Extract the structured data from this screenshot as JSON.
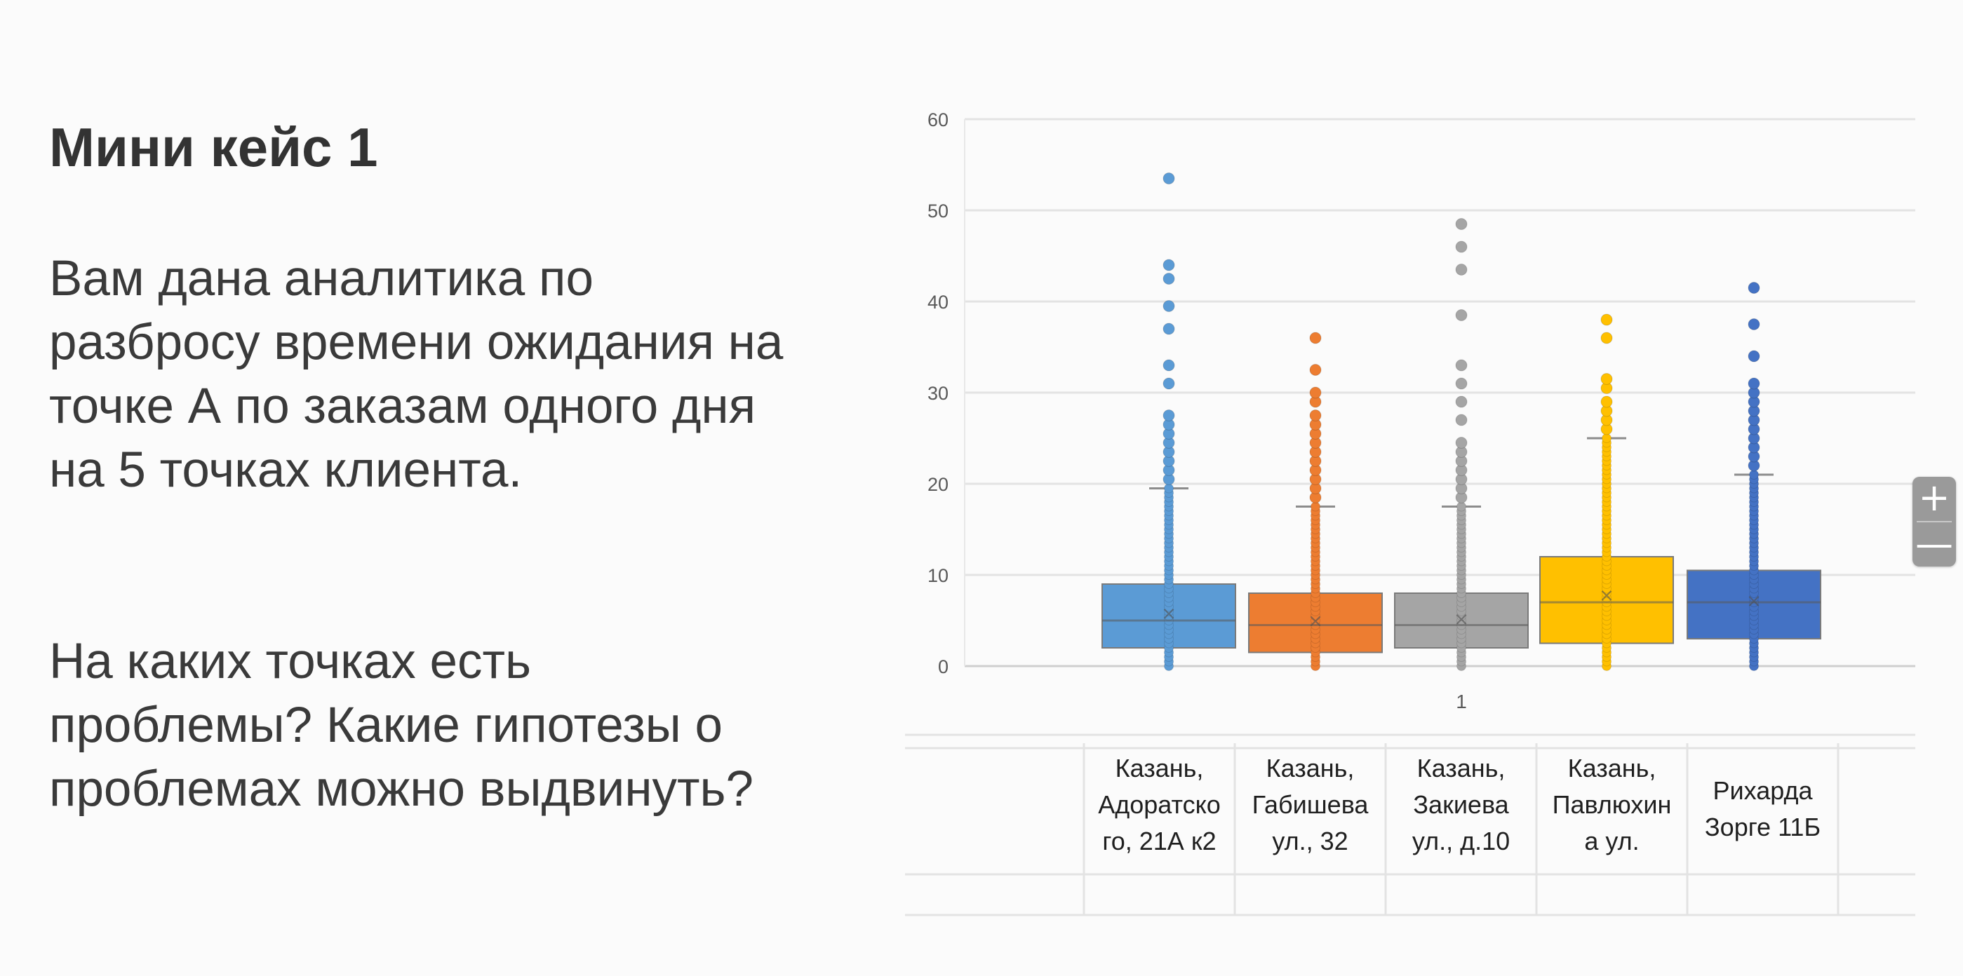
{
  "slide": {
    "title": "Мини кейс 1",
    "paragraph1": "Вам дана аналитика по разбросу времени ожидания на точке А по заказам одного дня на 5 точках клиента.",
    "paragraph2": "На каких точках есть проблемы? Какие гипотезы о проблемах можно выдвинуть?"
  },
  "zoom": {
    "in_label": "+",
    "out_label": "—"
  },
  "chart_data": {
    "type": "box",
    "title": "",
    "xlabel": "",
    "ylabel": "",
    "ylim": [
      0,
      60
    ],
    "yticks": [
      0,
      10,
      20,
      30,
      40,
      50,
      60
    ],
    "grid": true,
    "x_category_label": "1",
    "legend_table_labels": [
      "Казань, Адоратско го, 21А к2",
      "Казань, Габишева ул., 32",
      "Казань, Закиева ул., д.10",
      "Казань, Павлюхин а ул.",
      "Рихарда Зорге 11Б"
    ],
    "series": [
      {
        "name": "Казань, Адоратско го, 21А к2",
        "color": "#5b9bd5",
        "min": 0,
        "q1": 2,
        "median": 5,
        "mean": 5.8,
        "q3": 9,
        "max": 19.5,
        "outliers": [
          20.5,
          21.5,
          22.5,
          23.5,
          24.5,
          25.5,
          26.5,
          27.5,
          31,
          33,
          37,
          39.5,
          42.5,
          44,
          53.5
        ]
      },
      {
        "name": "Казань, Габишева ул., 32",
        "color": "#ed7d31",
        "min": 0,
        "q1": 1.5,
        "median": 4.5,
        "mean": 5,
        "q3": 8,
        "max": 17.5,
        "outliers": [
          18.5,
          19.5,
          20.5,
          21.5,
          22.5,
          23.5,
          24.5,
          25.5,
          26.5,
          27.5,
          29,
          30,
          32.5,
          36
        ]
      },
      {
        "name": "Казань, Закиева ул., д.10",
        "color": "#a5a5a5",
        "min": 0,
        "q1": 2,
        "median": 4.5,
        "mean": 5.2,
        "q3": 8,
        "max": 17.5,
        "outliers": [
          18.5,
          19.5,
          20.5,
          21.5,
          22.5,
          23.5,
          24.5,
          27,
          29,
          31,
          33,
          38.5,
          43.5,
          46,
          48.5
        ]
      },
      {
        "name": "Казань, Павлюхин а ул.",
        "color": "#ffc000",
        "min": 0,
        "q1": 2.5,
        "median": 7,
        "mean": 7.8,
        "q3": 12,
        "max": 25,
        "outliers": [
          26,
          27,
          28,
          29,
          30.5,
          31.5,
          36,
          38
        ]
      },
      {
        "name": "Рихарда Зорге 11Б",
        "color": "#4472c4",
        "min": 0,
        "q1": 3,
        "median": 7,
        "mean": 7.2,
        "q3": 10.5,
        "max": 21,
        "outliers": [
          22,
          23,
          24,
          25,
          26,
          27,
          28,
          29,
          30,
          31,
          34,
          37.5,
          41.5
        ]
      }
    ]
  }
}
